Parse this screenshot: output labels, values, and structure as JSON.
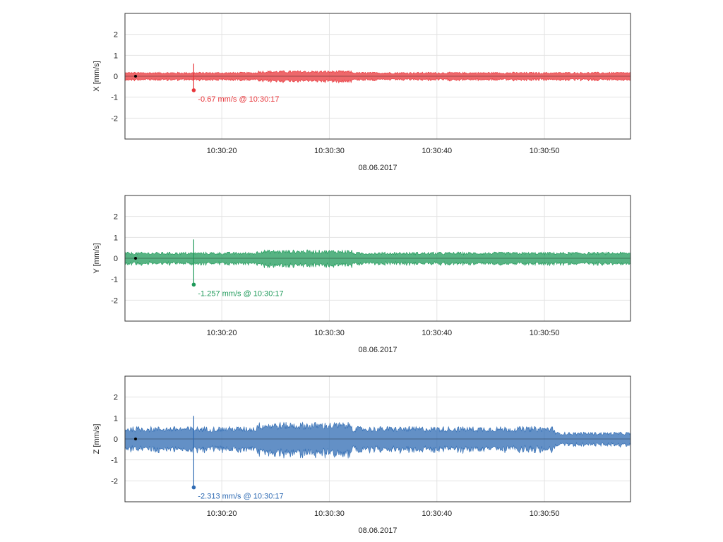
{
  "chart_data": [
    {
      "type": "line",
      "ylabel": "X [mm/s]",
      "xlabel": "08.06.2017",
      "ylim": [
        -3,
        3
      ],
      "yticks": [
        "2",
        "1",
        "0",
        "-1",
        "-2"
      ],
      "xticks": [
        "10:30:20",
        "10:30:30",
        "10:30:40",
        "10:30:50"
      ],
      "x_range": [
        "10:30:11",
        "10:30:58"
      ],
      "grid": true,
      "color": "#e8353a",
      "amplitude_mm_s": 0.2,
      "series": [
        {
          "min_point": {
            "value": -0.67,
            "time": "10:30:17"
          }
        }
      ],
      "annotation": "-0.67 mm/s @ 10:30:17"
    },
    {
      "type": "line",
      "ylabel": "Y [mm/s]",
      "xlabel": "08.06.2017",
      "ylim": [
        -3,
        3
      ],
      "yticks": [
        "2",
        "1",
        "0",
        "-1",
        "-2"
      ],
      "xticks": [
        "10:30:20",
        "10:30:30",
        "10:30:40",
        "10:30:50"
      ],
      "x_range": [
        "10:30:11",
        "10:30:58"
      ],
      "grid": true,
      "color": "#1f9a5a",
      "amplitude_mm_s": 0.3,
      "series": [
        {
          "min_point": {
            "value": -1.257,
            "time": "10:30:17"
          }
        }
      ],
      "annotation": "-1.257 mm/s @ 10:30:17"
    },
    {
      "type": "line",
      "ylabel": "Z [mm/s]",
      "xlabel": "08.06.2017",
      "ylim": [
        -3,
        3
      ],
      "yticks": [
        "2",
        "1",
        "0",
        "-1",
        "-2"
      ],
      "xticks": [
        "10:30:20",
        "10:30:30",
        "10:30:40",
        "10:30:50"
      ],
      "x_range": [
        "10:30:11",
        "10:30:58"
      ],
      "grid": true,
      "color": "#2f6bb3",
      "amplitude_mm_s": 0.6,
      "series": [
        {
          "min_point": {
            "value": -2.313,
            "time": "10:30:17"
          }
        }
      ],
      "annotation": "-2.313 mm/s @ 10:30:17"
    }
  ]
}
